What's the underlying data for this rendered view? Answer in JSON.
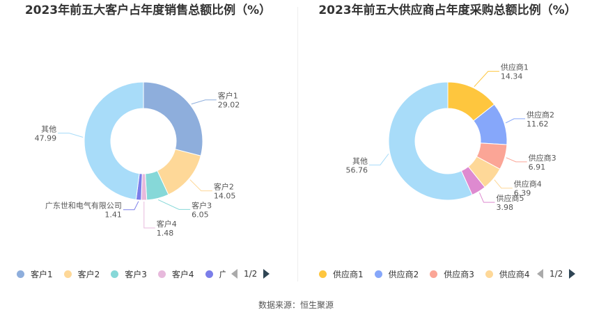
{
  "source_text": "数据来源：恒生聚源",
  "chart_data": [
    {
      "type": "pie",
      "title": "2023年前五大客户占年度销售总额比例（%）",
      "donut": true,
      "slices": [
        {
          "name": "客户1",
          "value": 29.02,
          "color": "#8eaedc"
        },
        {
          "name": "客户2",
          "value": 14.05,
          "color": "#fed898"
        },
        {
          "name": "客户3",
          "value": 6.05,
          "color": "#86d8d8"
        },
        {
          "name": "客户4",
          "value": 1.48,
          "color": "#e7b9dc"
        },
        {
          "name": "广东世和电气有限公司",
          "value": 1.41,
          "color": "#7b7ee9"
        },
        {
          "name": "其他",
          "value": 47.99,
          "color": "#a8dcf9"
        }
      ],
      "legend_names": [
        "客户1",
        "客户2",
        "客户3",
        "客户4",
        "广"
      ],
      "page_indicator": "1/2"
    },
    {
      "type": "pie",
      "title": "2023年前五大供应商占年度采购总额比例（%）",
      "donut": true,
      "slices": [
        {
          "name": "供应商1",
          "value": 14.34,
          "color": "#fec63e"
        },
        {
          "name": "供应商2",
          "value": 11.62,
          "color": "#86a7fa"
        },
        {
          "name": "供应商3",
          "value": 6.91,
          "color": "#fba596"
        },
        {
          "name": "供应商4",
          "value": 6.39,
          "color": "#fed898"
        },
        {
          "name": "供应商5",
          "value": 3.98,
          "color": "#de8ad0"
        },
        {
          "name": "其他",
          "value": 56.76,
          "color": "#a8dcf9"
        }
      ],
      "legend_names": [
        "供应商1",
        "供应商2",
        "供应商3",
        "供应商4"
      ],
      "page_indicator": "1/2"
    }
  ]
}
